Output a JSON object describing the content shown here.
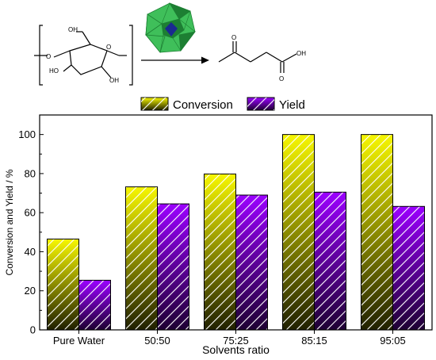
{
  "scheme": {
    "reactant_labels": [
      "O",
      "O",
      "OH",
      "HO",
      "OH"
    ],
    "product_labels": [
      "O",
      "OH",
      "O"
    ],
    "colors": {
      "polyhedra": "#3fbf5a",
      "polyhedra_dark": "#1d7f33",
      "core": "#1a2a8f"
    }
  },
  "legend": {
    "conversion": "Conversion",
    "yield": "Yield"
  },
  "colors": {
    "conversion_top": "#f7f700",
    "conversion_bottom": "#202000",
    "yield_top": "#9b00ff",
    "yield_bottom": "#1e0033",
    "hatch": "#ffffff"
  },
  "chart_data": {
    "type": "bar",
    "categories": [
      "Pure Water",
      "50:50",
      "75:25",
      "85:15",
      "95:05"
    ],
    "series": [
      {
        "name": "Conversion",
        "values": [
          46.5,
          73.2,
          79.8,
          100.0,
          100.0
        ]
      },
      {
        "name": "Yield",
        "values": [
          25.4,
          64.5,
          69.0,
          70.5,
          63.2
        ]
      }
    ],
    "xlabel": "Solvents ratio",
    "ylabel": "Conversion and Yield / %",
    "ylim": [
      0,
      110
    ],
    "yticks": [
      0,
      20,
      40,
      60,
      80,
      100
    ],
    "legend_position": "top-center",
    "grid": false
  }
}
